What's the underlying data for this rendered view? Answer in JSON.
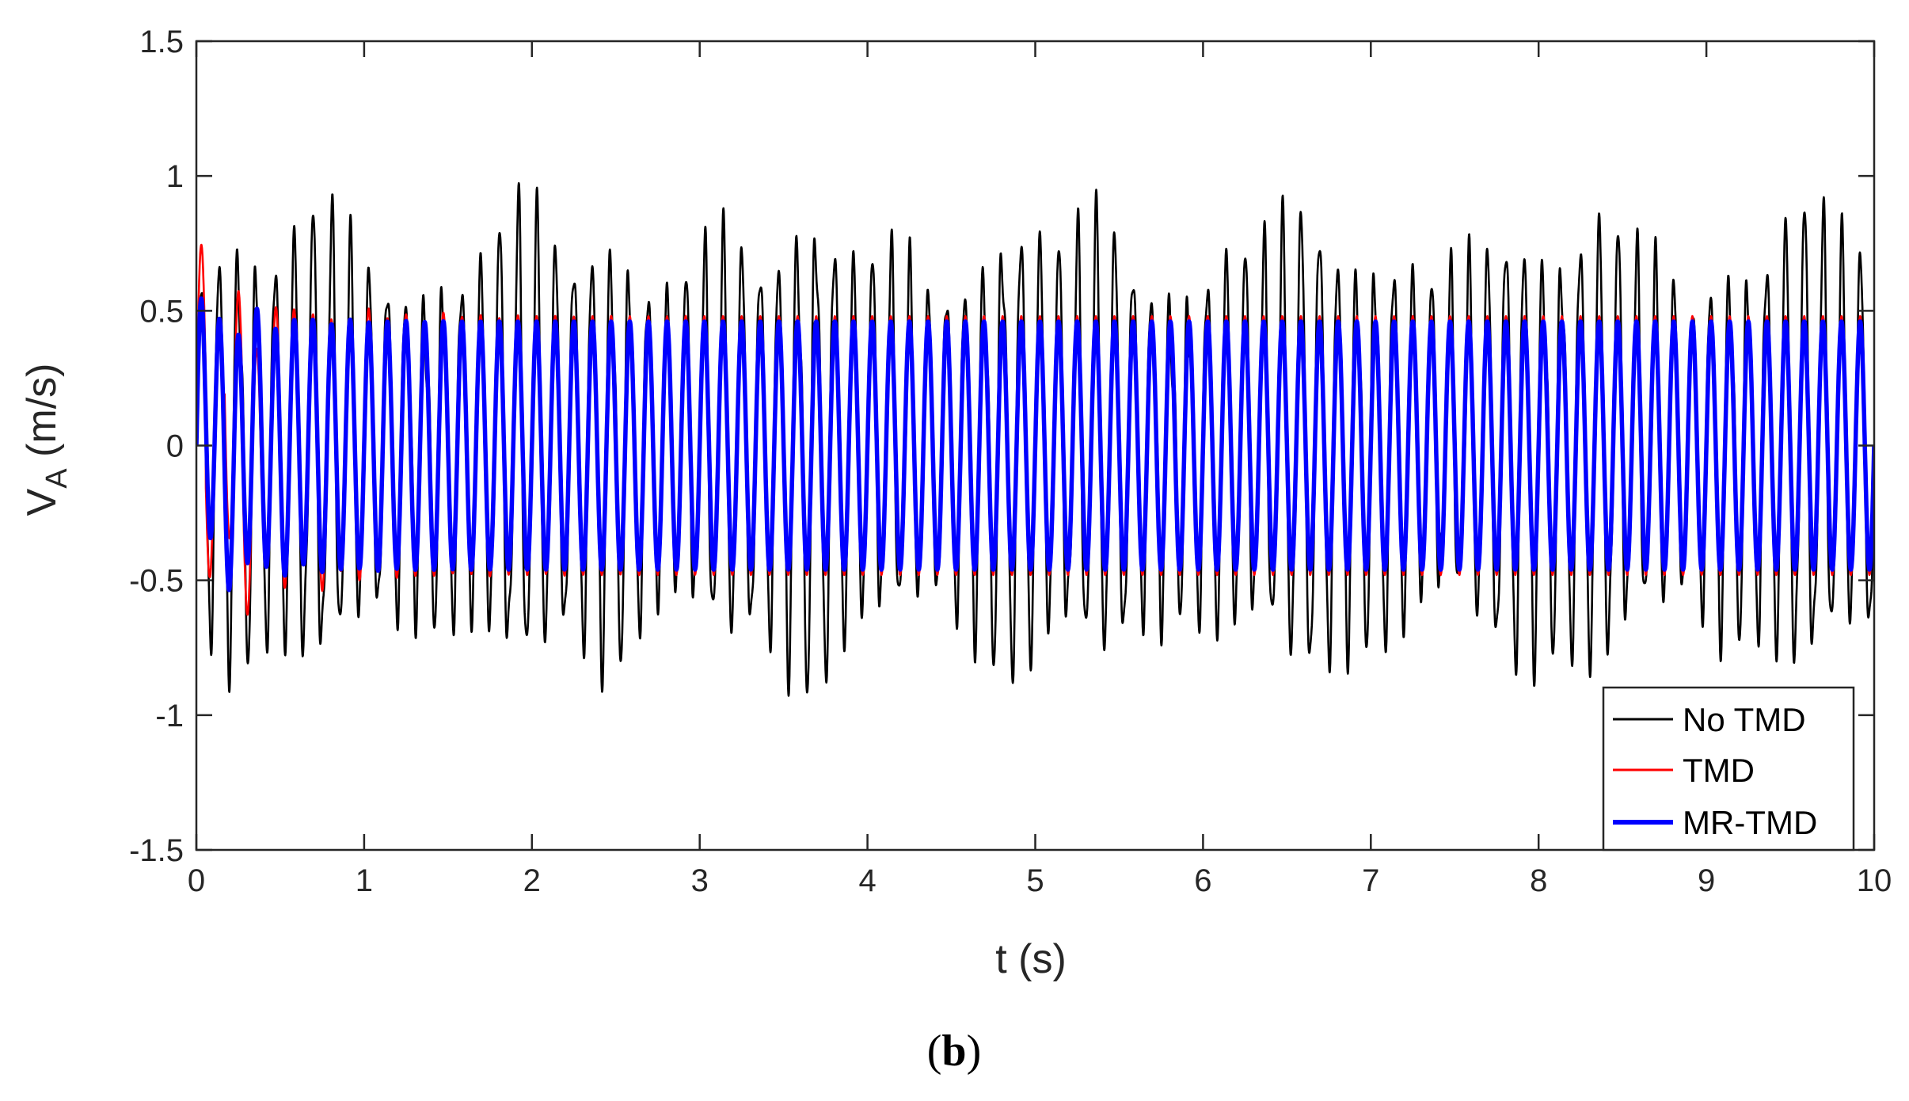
{
  "chart_data": {
    "type": "line",
    "title": "",
    "xlabel": "t (s)",
    "ylabel_main": "V",
    "ylabel_sub": "A",
    "ylabel_unit": " (m/s)",
    "xlim": [
      0,
      10
    ],
    "ylim": [
      -1.5,
      1.5
    ],
    "xticks": [
      0,
      1,
      2,
      3,
      4,
      5,
      6,
      7,
      8,
      9,
      10
    ],
    "xtick_labels": [
      "0",
      "1",
      "2",
      "3",
      "4",
      "5",
      "6",
      "7",
      "8",
      "9",
      "10"
    ],
    "yticks": [
      -1.5,
      -1,
      -0.5,
      0,
      0.5,
      1,
      1.5
    ],
    "ytick_labels": [
      "-1.5",
      "-1",
      "-0.5",
      "0",
      "0.5",
      "1",
      "1.5"
    ],
    "grid": false,
    "legend_position": "bottom-right",
    "caption_open": "(",
    "caption_letter": "b",
    "caption_close": ")",
    "series": [
      {
        "name": "No TMD",
        "color": "#000000",
        "peak_envelope": [
          0.55,
          0.6,
          0.9,
          0.73,
          0.62,
          0.88,
          0.94,
          0.75,
          0.76,
          0.9,
          0.98,
          0.96,
          0.95,
          0.92,
          0.72,
          1.04,
          0.95,
          0.94
        ],
        "trough_envelope": [
          -0.67,
          -0.68,
          -0.95,
          -0.72,
          -0.6,
          -0.86,
          -0.79,
          -0.93,
          -0.9,
          -0.92,
          -0.97,
          -0.98,
          -1.0,
          -0.86,
          -0.86
        ]
      },
      {
        "name": "TMD",
        "color": "#ff0000",
        "amplitude": 0.48,
        "transient_peaks": [
          0.69,
          0.7,
          0.63,
          -0.8,
          -0.73
        ]
      },
      {
        "name": "MR-TMD",
        "color": "#0000ff",
        "amplitude": 0.46,
        "transient_peaks": [
          0.63,
          -0.6
        ]
      }
    ]
  }
}
